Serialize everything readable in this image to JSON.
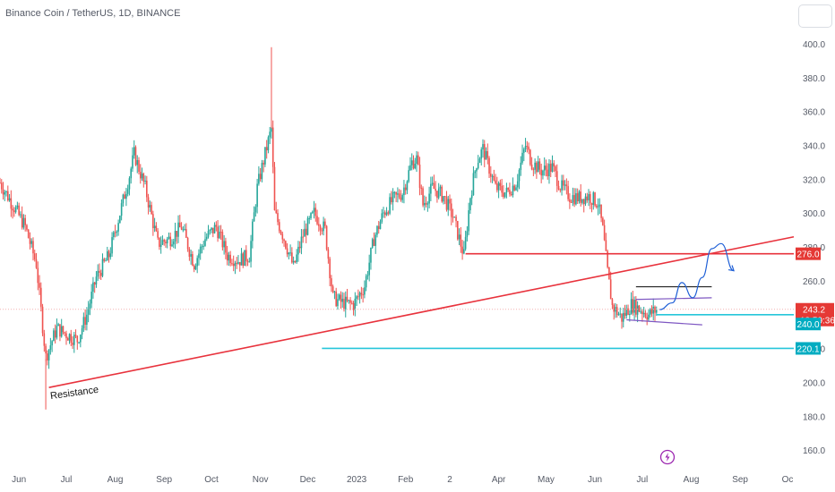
{
  "header": {
    "title": "Binance Coin / TetherUS, 1D, BINANCE"
  },
  "colors": {
    "up": "#26a69a",
    "down": "#ef5350",
    "trendline": "#e8323c",
    "support": "#26c6da",
    "price_tag": "#e53935",
    "level_tag": "#00acc1",
    "wedge": "#7e57c2",
    "projection": "#1e5fd6",
    "box_top": "#222222"
  },
  "chart_data": {
    "type": "candlestick",
    "title": "Binance Coin / TetherUS, 1D, BINANCE",
    "ylim": [
      150,
      410
    ],
    "y_ticks": [
      160,
      180,
      200,
      220,
      240,
      260,
      280,
      300,
      320,
      340,
      360,
      380,
      400
    ],
    "y_tick_labels": [
      "160.0",
      "180.0",
      "200.0",
      "220.0",
      "240.0",
      "260.0",
      "280.0",
      "300.0",
      "320.0",
      "340.0",
      "360.0",
      "380.0",
      "400.0"
    ],
    "x_ticks": [
      {
        "label": "Jun",
        "date": "2022-06-01"
      },
      {
        "label": "Jul",
        "date": "2022-07-01"
      },
      {
        "label": "Aug",
        "date": "2022-08-01"
      },
      {
        "label": "Sep",
        "date": "2022-09-01"
      },
      {
        "label": "Oct",
        "date": "2022-10-01"
      },
      {
        "label": "Nov",
        "date": "2022-11-01"
      },
      {
        "label": "Dec",
        "date": "2022-12-01"
      },
      {
        "label": "2023",
        "date": "2023-01-01"
      },
      {
        "label": "Feb",
        "date": "2023-02-01"
      },
      {
        "label": "2",
        "date": "2023-03-01"
      },
      {
        "label": "Apr",
        "date": "2023-04-01"
      },
      {
        "label": "May",
        "date": "2023-05-01"
      },
      {
        "label": "Jun",
        "date": "2023-06-01"
      },
      {
        "label": "Jul",
        "date": "2023-07-01"
      },
      {
        "label": "Aug",
        "date": "2023-08-01"
      },
      {
        "label": "Sep",
        "date": "2023-09-01"
      },
      {
        "label": "Oc",
        "date": "2023-10-01"
      }
    ],
    "x_start": "2022-05-20",
    "x_end": "2023-10-05",
    "price_path": [
      [
        "2022-05-20",
        318
      ],
      [
        "2022-05-28",
        305
      ],
      [
        "2022-06-05",
        292
      ],
      [
        "2022-06-12",
        270
      ],
      [
        "2022-06-18",
        215
      ],
      [
        "2022-06-25",
        232
      ],
      [
        "2022-07-02",
        228
      ],
      [
        "2022-07-08",
        225
      ],
      [
        "2022-07-14",
        240
      ],
      [
        "2022-07-20",
        262
      ],
      [
        "2022-07-28",
        275
      ],
      [
        "2022-08-04",
        300
      ],
      [
        "2022-08-10",
        322
      ],
      [
        "2022-08-13",
        335
      ],
      [
        "2022-08-20",
        315
      ],
      [
        "2022-08-28",
        282
      ],
      [
        "2022-09-05",
        285
      ],
      [
        "2022-09-12",
        292
      ],
      [
        "2022-09-20",
        270
      ],
      [
        "2022-09-27",
        285
      ],
      [
        "2022-10-04",
        292
      ],
      [
        "2022-10-11",
        275
      ],
      [
        "2022-10-18",
        272
      ],
      [
        "2022-10-25",
        275
      ],
      [
        "2022-10-30",
        315
      ],
      [
        "2022-11-04",
        335
      ],
      [
        "2022-11-08",
        350
      ],
      [
        "2022-11-10",
        300
      ],
      [
        "2022-11-16",
        285
      ],
      [
        "2022-11-22",
        268
      ],
      [
        "2022-11-28",
        287
      ],
      [
        "2022-12-05",
        300
      ],
      [
        "2022-12-12",
        290
      ],
      [
        "2022-12-17",
        250
      ],
      [
        "2022-12-23",
        247
      ],
      [
        "2022-12-30",
        246
      ],
      [
        "2023-01-06",
        257
      ],
      [
        "2023-01-12",
        285
      ],
      [
        "2023-01-18",
        300
      ],
      [
        "2023-01-24",
        308
      ],
      [
        "2023-01-30",
        312
      ],
      [
        "2023-02-05",
        330
      ],
      [
        "2023-02-08",
        332
      ],
      [
        "2023-02-12",
        305
      ],
      [
        "2023-02-18",
        315
      ],
      [
        "2023-02-25",
        310
      ],
      [
        "2023-03-03",
        298
      ],
      [
        "2023-03-10",
        275
      ],
      [
        "2023-03-14",
        310
      ],
      [
        "2023-03-18",
        330
      ],
      [
        "2023-03-22",
        338
      ],
      [
        "2023-03-30",
        315
      ],
      [
        "2023-04-06",
        312
      ],
      [
        "2023-04-12",
        318
      ],
      [
        "2023-04-18",
        340
      ],
      [
        "2023-04-22",
        330
      ],
      [
        "2023-04-28",
        325
      ],
      [
        "2023-05-05",
        327
      ],
      [
        "2023-05-10",
        316
      ],
      [
        "2023-05-16",
        310
      ],
      [
        "2023-05-22",
        309
      ],
      [
        "2023-05-28",
        310
      ],
      [
        "2023-06-03",
        306
      ],
      [
        "2023-06-06",
        290
      ],
      [
        "2023-06-09",
        265
      ],
      [
        "2023-06-12",
        245
      ],
      [
        "2023-06-18",
        238
      ],
      [
        "2023-06-24",
        246
      ],
      [
        "2023-06-30",
        243
      ],
      [
        "2023-07-05",
        240
      ],
      [
        "2023-07-10",
        243
      ]
    ],
    "annotations": {
      "trendline": {
        "label": "Resistance",
        "from": [
          "2022-06-20",
          197
        ],
        "to": [
          "2023-10-05",
          286
        ]
      },
      "support_mid": {
        "from": [
          "2022-12-10",
          220.1
        ],
        "to": [
          "2023-10-05",
          220.1
        ],
        "tag": "220.1"
      },
      "support_low": {
        "from": [
          "2023-06-12",
          220.1
        ],
        "to": [
          "2023-10-05",
          220.1
        ]
      },
      "resistance_276": {
        "from": [
          "2023-03-11",
          276
        ],
        "to": [
          "2023-10-05",
          276
        ],
        "tag": "276.0"
      },
      "level_240": {
        "from": [
          "2023-07-10",
          240
        ],
        "to": [
          "2023-10-05",
          240
        ],
        "tag": "240.0"
      },
      "box_top": {
        "from": [
          "2023-06-27",
          256.5
        ],
        "to": [
          "2023-08-14",
          256.5
        ]
      },
      "wedge_upper": {
        "from": [
          "2023-06-27",
          249
        ],
        "to": [
          "2023-08-14",
          250
        ]
      },
      "wedge_lower": {
        "from": [
          "2023-06-21",
          237
        ],
        "to": [
          "2023-08-08",
          234
        ]
      },
      "current_price": {
        "value": 243.2,
        "tag": "243.2",
        "countdown": "18:59:36"
      },
      "projection": [
        [
          "2023-07-12",
          243
        ],
        [
          "2023-07-20",
          247
        ],
        [
          "2023-07-26",
          259
        ],
        [
          "2023-08-02",
          250
        ],
        [
          "2023-08-08",
          262
        ],
        [
          "2023-08-14",
          279
        ],
        [
          "2023-08-20",
          282
        ],
        [
          "2023-08-28",
          266
        ]
      ]
    }
  }
}
